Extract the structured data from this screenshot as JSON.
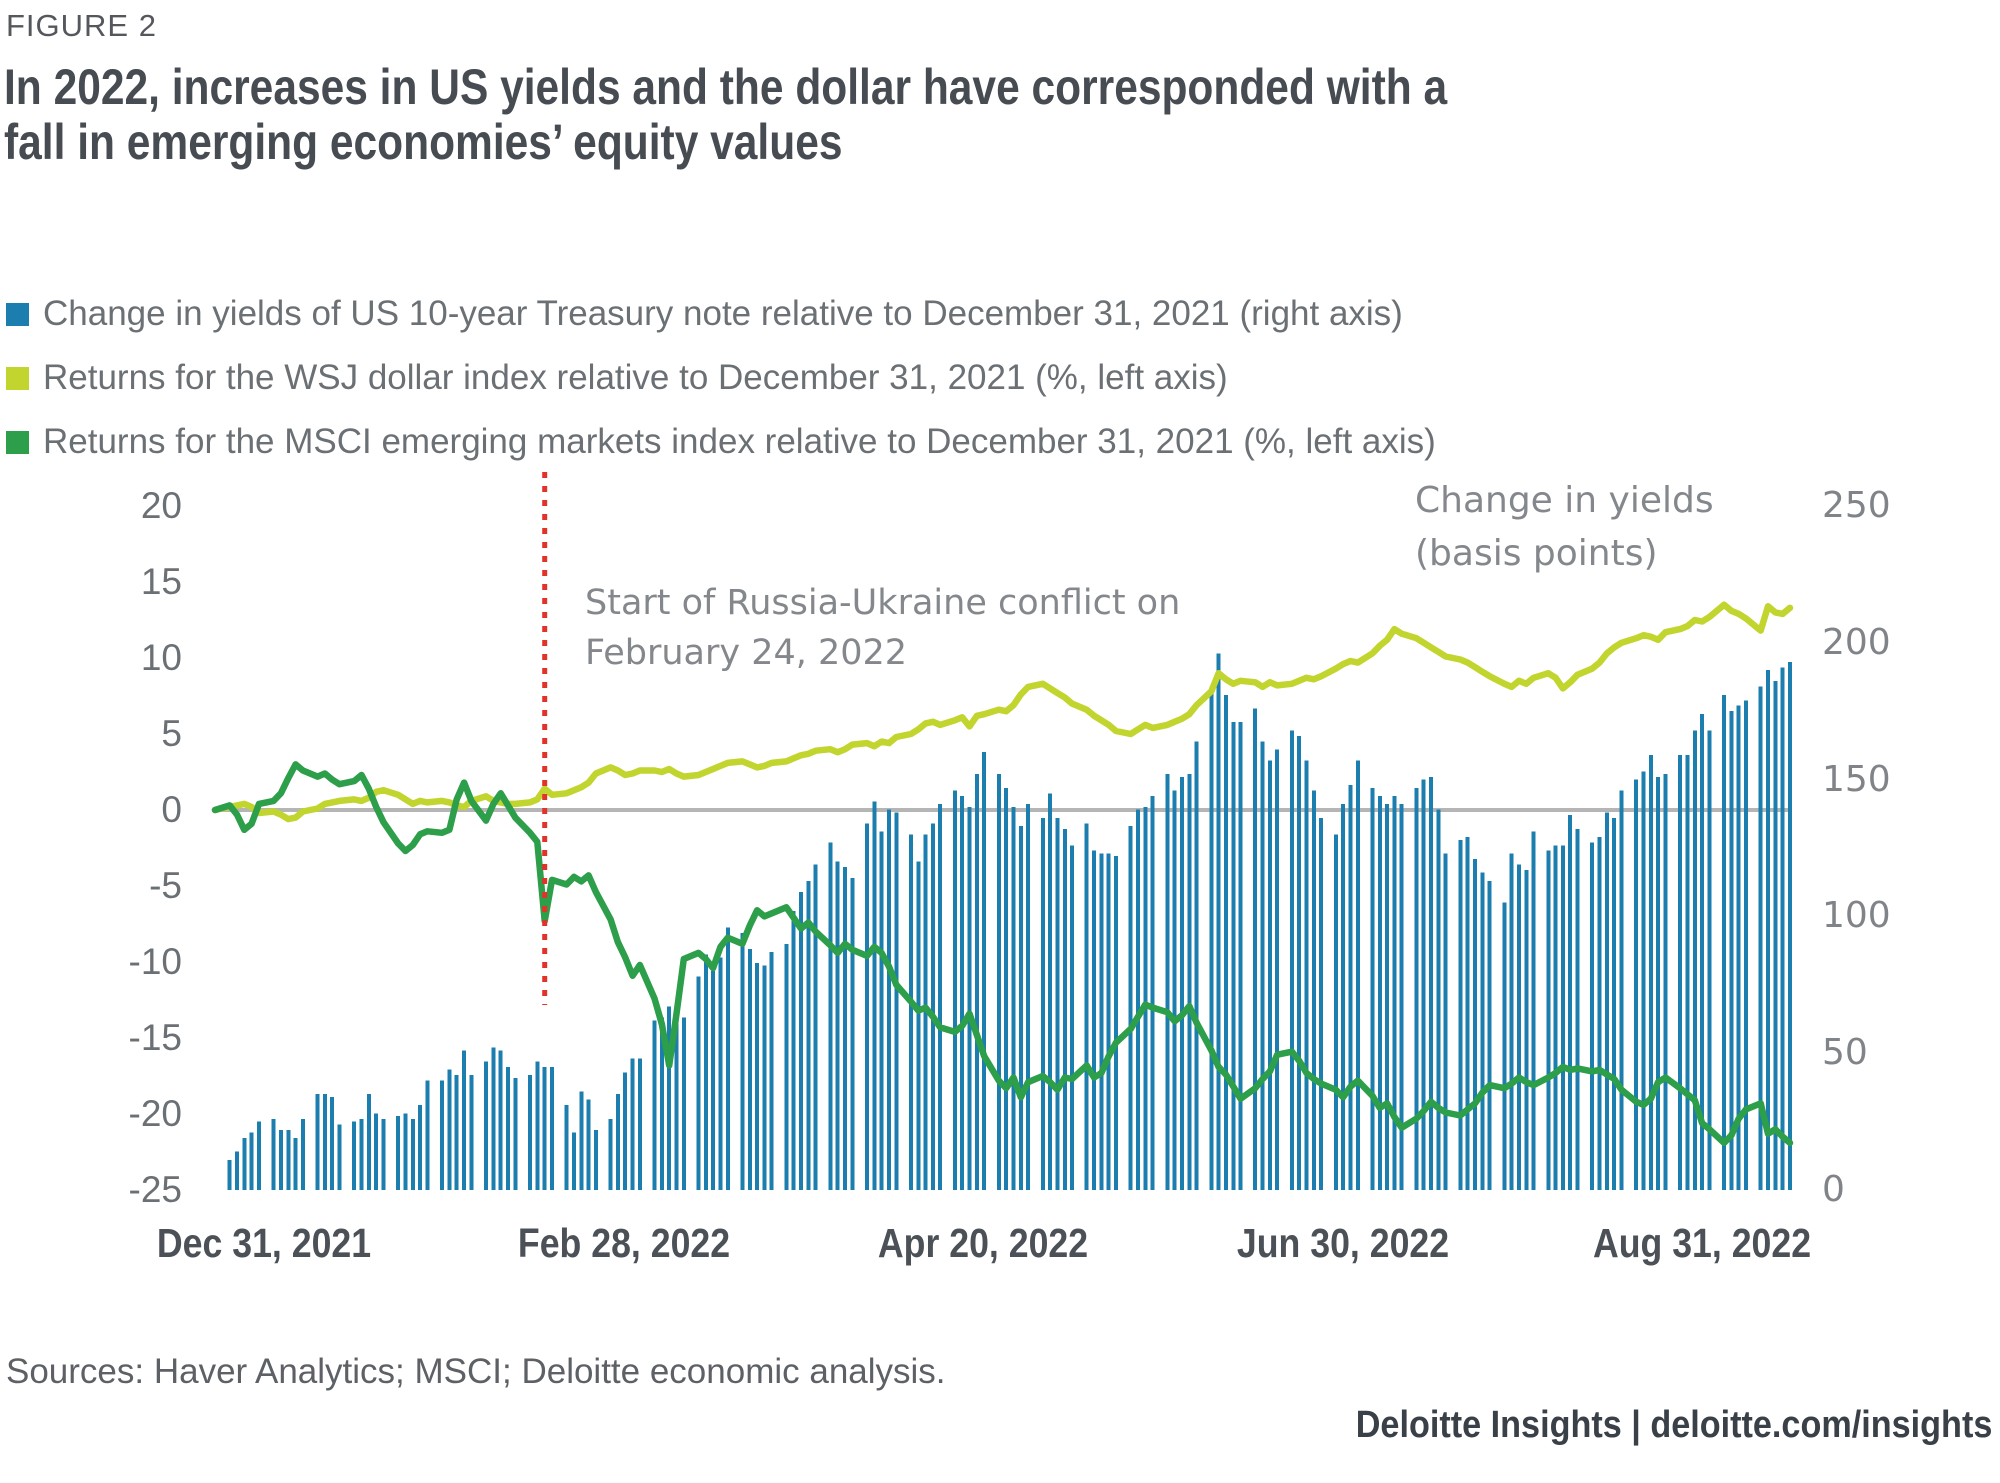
{
  "figure_label": "FIGURE 2",
  "title_line1": "In 2022, increases in US yields and the dollar have corresponded with a",
  "title_line2": "fall in emerging economies’ equity values",
  "legend": {
    "items": [
      {
        "label": "Change in yields of US 10-year Treasury note relative to December 31, 2021 (right axis)",
        "color": "#1B7EAE"
      },
      {
        "label": "Returns for the WSJ dollar index relative to December 31, 2021 (%, left axis)",
        "color": "#C2D52F"
      },
      {
        "label": "Returns for the MSCI emerging markets index relative to December 31, 2021 (%, left axis)",
        "color": "#2D9E49"
      }
    ]
  },
  "sources": "Sources: Haver Analytics; MSCI; Deloitte economic analysis.",
  "footer": "Deloitte Insights | deloitte.com/insights",
  "chart_data": {
    "type": "bar+line",
    "title": "In 2022, increases in US yields and the dollar have corresponded with a fall in emerging economies’ equity values",
    "x_axis": {
      "labels": [
        "Dec 31, 2021",
        "Feb 28, 2022",
        "Apr 20, 2022",
        "Jun 30, 2022",
        "Aug 31, 2022"
      ]
    },
    "left_axis": {
      "ticks": [
        20,
        15,
        10,
        5,
        0,
        -5,
        -10,
        -15,
        -20,
        -25
      ],
      "range": [
        -25,
        20
      ],
      "unit": "%"
    },
    "right_axis": {
      "ticks": [
        250,
        200,
        150,
        100,
        50,
        0
      ],
      "range": [
        0,
        250
      ],
      "unit": "basis points"
    },
    "grid": false,
    "legend_position": "top-left",
    "zero_line_color": "#B5B5B5",
    "annotations": {
      "event_label_line1": "Start of Russia-Ukraine conflict on",
      "event_label_line2": "February 24, 2022",
      "right_axis_title_line1": "Change in yields",
      "right_axis_title_line2": "(basis points)"
    },
    "event_marker": {
      "index": 37,
      "date": "February 24, 2022",
      "color": "#E0342B"
    },
    "week_lengths": [
      1,
      5,
      5,
      4,
      5,
      5,
      5,
      5,
      4,
      5,
      5,
      5,
      5,
      5,
      5,
      4,
      5,
      5,
      5,
      5,
      5,
      5,
      4,
      5,
      5,
      4,
      5,
      4,
      5,
      5,
      5,
      5,
      5,
      5,
      5,
      5,
      4,
      5
    ],
    "series": [
      {
        "name": "US 10-year Treasury yield change (basis points)",
        "type": "bar",
        "axis": "right",
        "color": "#1B7EAE",
        "values": [
          0,
          11,
          14,
          19,
          21,
          25,
          26,
          22,
          22,
          19,
          26,
          35,
          35,
          34,
          24,
          25,
          26,
          35,
          28,
          26,
          27,
          28,
          26,
          31,
          40,
          40,
          44,
          42,
          51,
          42,
          47,
          52,
          51,
          45,
          41,
          42,
          47,
          45,
          45,
          31,
          21,
          36,
          33,
          22,
          26,
          35,
          43,
          48,
          48,
          62,
          63,
          67,
          65,
          63,
          78,
          86,
          80,
          85,
          96,
          94,
          88,
          83,
          82,
          87,
          90,
          102,
          109,
          113,
          119,
          127,
          120,
          118,
          114,
          134,
          142,
          131,
          139,
          138,
          130,
          120,
          130,
          134,
          141,
          146,
          144,
          140,
          152,
          160,
          152,
          147,
          140,
          133,
          141,
          136,
          145,
          136,
          132,
          126,
          134,
          124,
          123,
          123,
          122,
          133,
          139,
          140,
          144,
          152,
          146,
          151,
          152,
          164,
          184,
          196,
          181,
          171,
          171,
          176,
          164,
          157,
          161,
          168,
          166,
          157,
          146,
          136,
          130,
          141,
          148,
          157,
          147,
          144,
          141,
          144,
          141,
          147,
          150,
          151,
          139,
          123,
          128,
          129,
          121,
          116,
          113,
          105,
          123,
          119,
          117,
          131,
          124,
          126,
          126,
          137,
          132,
          127,
          129,
          138,
          136,
          146,
          150,
          153,
          159,
          151,
          152,
          159,
          159,
          168,
          174,
          168,
          181,
          175,
          177,
          179,
          184,
          190,
          186,
          191,
          193
        ]
      },
      {
        "name": "WSJ dollar index return (%)",
        "type": "line",
        "axis": "left",
        "color": "#C2D52F",
        "values": [
          0,
          0.2,
          0.3,
          0.4,
          0.2,
          -0.2,
          -0.1,
          -0.3,
          -0.6,
          -0.5,
          -0.1,
          0.1,
          0.4,
          0.5,
          0.6,
          0.7,
          0.6,
          0.8,
          1.2,
          1.3,
          1.0,
          0.7,
          0.4,
          0.6,
          0.5,
          0.6,
          0.5,
          0.3,
          0.2,
          0.6,
          0.9,
          0.6,
          0.5,
          0.4,
          0.4,
          0.5,
          0.7,
          1.4,
          1.0,
          1.1,
          1.3,
          1.5,
          1.8,
          2.4,
          2.8,
          2.6,
          2.3,
          2.4,
          2.6,
          2.6,
          2.5,
          2.7,
          2.4,
          2.2,
          2.3,
          2.5,
          2.7,
          2.9,
          3.1,
          3.2,
          3.0,
          2.8,
          2.9,
          3.1,
          3.2,
          3.4,
          3.6,
          3.7,
          3.9,
          4.0,
          3.8,
          4.0,
          4.3,
          4.4,
          4.2,
          4.5,
          4.4,
          4.8,
          5.0,
          5.3,
          5.7,
          5.8,
          5.6,
          5.9,
          6.1,
          5.5,
          6.2,
          6.3,
          6.6,
          6.5,
          6.9,
          7.6,
          8.1,
          8.3,
          8.0,
          7.7,
          7.4,
          7.0,
          6.6,
          6.2,
          5.9,
          5.6,
          5.2,
          5.0,
          5.3,
          5.6,
          5.4,
          5.6,
          5.8,
          6.0,
          6.3,
          6.9,
          7.8,
          9.0,
          8.6,
          8.3,
          8.5,
          8.4,
          8.1,
          8.4,
          8.2,
          8.3,
          8.5,
          8.7,
          8.6,
          8.8,
          9.3,
          9.6,
          9.8,
          9.7,
          10.3,
          10.8,
          11.2,
          11.9,
          11.6,
          11.3,
          11.0,
          10.7,
          10.4,
          10.1,
          9.9,
          9.7,
          9.4,
          9.1,
          8.8,
          8.3,
          8.1,
          8.5,
          8.3,
          8.7,
          9.0,
          8.7,
          8.0,
          8.4,
          8.9,
          9.3,
          9.7,
          10.3,
          10.7,
          11.0,
          11.3,
          11.5,
          11.4,
          11.2,
          11.7,
          11.9,
          12.1,
          12.5,
          12.4,
          12.7,
          13.5,
          13.1,
          12.9,
          12.6,
          11.8,
          13.4,
          13.0,
          12.9,
          13.3
        ]
      },
      {
        "name": "MSCI emerging markets index return (%)",
        "type": "line",
        "axis": "left",
        "color": "#2D9E49",
        "values": [
          0,
          0.3,
          -0.3,
          -1.3,
          -0.9,
          0.4,
          0.6,
          1.1,
          2.1,
          3.0,
          2.6,
          2.2,
          2.4,
          2.0,
          1.7,
          1.9,
          2.3,
          1.4,
          0.2,
          -0.8,
          -2.2,
          -2.7,
          -2.3,
          -1.6,
          -1.4,
          -1.5,
          -1.3,
          0.7,
          1.8,
          0.6,
          -0.7,
          0.4,
          1.1,
          0.3,
          -0.5,
          -1.5,
          -2.1,
          -7.3,
          -4.6,
          -4.9,
          -4.4,
          -4.7,
          -4.3,
          -5.4,
          -7.2,
          -8.7,
          -9.7,
          -10.9,
          -10.2,
          -12.4,
          -14.1,
          -16.8,
          -13.4,
          -9.8,
          -9.4,
          -9.8,
          -10.4,
          -9.0,
          -8.4,
          -8.8,
          -7.6,
          -6.6,
          -7.0,
          -6.8,
          -6.4,
          -7.1,
          -7.8,
          -7.4,
          -8.0,
          -8.9,
          -9.4,
          -8.8,
          -9.2,
          -9.6,
          -9.0,
          -9.4,
          -10.3,
          -11.5,
          -12.6,
          -13.2,
          -13.0,
          -13.6,
          -14.3,
          -14.6,
          -14.2,
          -13.4,
          -14.8,
          -16.2,
          -17.8,
          -18.3,
          -17.6,
          -18.9,
          -17.9,
          -17.5,
          -17.9,
          -18.4,
          -17.6,
          -17.7,
          -16.8,
          -17.6,
          -17.3,
          -16.2,
          -15.3,
          -14.4,
          -13.6,
          -12.8,
          -13.0,
          -13.3,
          -13.9,
          -13.5,
          -12.9,
          -14.0,
          -15.8,
          -16.9,
          -17.4,
          -18.2,
          -19.0,
          -18.3,
          -17.7,
          -17.2,
          -16.1,
          -15.9,
          -16.5,
          -17.3,
          -17.7,
          -18.0,
          -18.4,
          -18.9,
          -18.2,
          -17.8,
          -18.8,
          -19.6,
          -19.3,
          -20.2,
          -20.9,
          -20.3,
          -19.8,
          -19.2,
          -19.6,
          -19.9,
          -20.1,
          -19.7,
          -19.3,
          -18.6,
          -18.1,
          -18.3,
          -18.0,
          -17.6,
          -17.9,
          -18.1,
          -17.6,
          -17.3,
          -16.9,
          -17.1,
          -17.0,
          -17.2,
          -17.1,
          -17.4,
          -17.7,
          -18.4,
          -19.2,
          -19.4,
          -19.0,
          -17.9,
          -17.6,
          -18.3,
          -18.7,
          -19.1,
          -20.6,
          -21.0,
          -21.9,
          -21.4,
          -20.3,
          -19.7,
          -19.3,
          -21.3,
          -21.0,
          -21.5,
          -21.9
        ]
      }
    ]
  }
}
